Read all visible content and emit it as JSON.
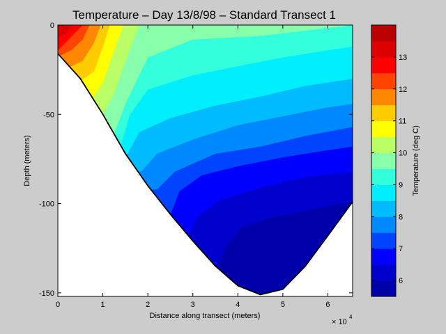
{
  "chart_data": {
    "type": "contour",
    "title": "Temperature – Day 13/8/98 – Standard Transect 1",
    "xlabel": "Distance along transect (meters)",
    "ylabel": "Depth (meters)",
    "x_multiplier_label": "× 10",
    "x_multiplier_exponent": "4",
    "xlim": [
      0,
      65500
    ],
    "ylim": [
      -152,
      0
    ],
    "x_ticks": [
      "0",
      "1",
      "2",
      "3",
      "4",
      "5",
      "6"
    ],
    "y_ticks": [
      "0",
      "-50",
      "-100",
      "-150"
    ],
    "colorbar": {
      "label": "Temperature (deg C)",
      "range": [
        5.5,
        14
      ],
      "ticks": [
        "6",
        "7",
        "8",
        "9",
        "10",
        "11",
        "12",
        "13"
      ],
      "levels": [
        {
          "min": 5.5,
          "max": 6.0,
          "color": "#0000AA"
        },
        {
          "min": 6.0,
          "max": 6.5,
          "color": "#0000CC"
        },
        {
          "min": 6.5,
          "max": 7.0,
          "color": "#0000FF"
        },
        {
          "min": 7.0,
          "max": 7.5,
          "color": "#0044FF"
        },
        {
          "min": 7.5,
          "max": 8.0,
          "color": "#0088FF"
        },
        {
          "min": 8.0,
          "max": 8.5,
          "color": "#00BBFF"
        },
        {
          "min": 8.5,
          "max": 9.0,
          "color": "#00EEFF"
        },
        {
          "min": 9.0,
          "max": 9.5,
          "color": "#33FFDD"
        },
        {
          "min": 9.5,
          "max": 10.0,
          "color": "#88FFAA"
        },
        {
          "min": 10.0,
          "max": 10.5,
          "color": "#BBFF66"
        },
        {
          "min": 10.5,
          "max": 11.0,
          "color": "#FFFF00"
        },
        {
          "min": 11.0,
          "max": 11.5,
          "color": "#FFCC00"
        },
        {
          "min": 11.5,
          "max": 12.0,
          "color": "#FF8800"
        },
        {
          "min": 12.0,
          "max": 12.5,
          "color": "#FF4400"
        },
        {
          "min": 12.5,
          "max": 13.0,
          "color": "#FF0000"
        },
        {
          "min": 13.0,
          "max": 13.5,
          "color": "#DD0000"
        },
        {
          "min": 13.5,
          "max": 14.0,
          "color": "#BB0000"
        }
      ]
    },
    "bottom_profile": [
      [
        0,
        -16
      ],
      [
        5000,
        -30
      ],
      [
        10000,
        -50
      ],
      [
        15000,
        -72
      ],
      [
        20000,
        -90
      ],
      [
        25000,
        -106
      ],
      [
        30000,
        -121
      ],
      [
        35000,
        -135
      ],
      [
        40000,
        -146
      ],
      [
        45000,
        -151
      ],
      [
        50000,
        -148
      ],
      [
        55000,
        -135
      ],
      [
        60000,
        -118
      ],
      [
        65500,
        -99
      ]
    ],
    "isotherms": [
      {
        "t": 13.5,
        "pts": [
          [
            0,
            -1
          ],
          [
            1800,
            0
          ]
        ]
      },
      {
        "t": 13.0,
        "pts": [
          [
            0,
            -7
          ],
          [
            1600,
            -5
          ],
          [
            3300,
            0
          ]
        ]
      },
      {
        "t": 12.5,
        "pts": [
          [
            0,
            -14
          ],
          [
            2000,
            -9
          ],
          [
            3500,
            -5
          ],
          [
            5500,
            0
          ]
        ]
      },
      {
        "t": 12.0,
        "pts": [
          [
            500,
            -17
          ],
          [
            3000,
            -14
          ],
          [
            5500,
            -8
          ],
          [
            7000,
            0
          ]
        ]
      },
      {
        "t": 11.5,
        "pts": [
          [
            3000,
            -23
          ],
          [
            5500,
            -20
          ],
          [
            8000,
            -10
          ],
          [
            9500,
            0
          ]
        ]
      },
      {
        "t": 11.0,
        "pts": [
          [
            5200,
            -31
          ],
          [
            8000,
            -26
          ],
          [
            10000,
            -12
          ],
          [
            11500,
            0
          ]
        ]
      },
      {
        "t": 10.5,
        "pts": [
          [
            8000,
            -40
          ],
          [
            10000,
            -32
          ],
          [
            12500,
            -14
          ],
          [
            14500,
            0
          ]
        ]
      },
      {
        "t": 10.0,
        "pts": [
          [
            10000,
            -50
          ],
          [
            12500,
            -38
          ],
          [
            15000,
            -20
          ],
          [
            18000,
            0
          ]
        ]
      },
      {
        "t": 9.5,
        "pts": [
          [
            12500,
            -61
          ],
          [
            15000,
            -44
          ],
          [
            20000,
            -18
          ],
          [
            30000,
            -8
          ],
          [
            45000,
            -6
          ],
          [
            55000,
            -3
          ],
          [
            65500,
            0
          ]
        ]
      },
      {
        "t": 9.0,
        "pts": [
          [
            14000,
            -67
          ],
          [
            16000,
            -50
          ],
          [
            20000,
            -36
          ],
          [
            30000,
            -28
          ],
          [
            40000,
            -23
          ],
          [
            50000,
            -18
          ],
          [
            60000,
            -14
          ],
          [
            65500,
            -12
          ]
        ]
      },
      {
        "t": 8.5,
        "pts": [
          [
            15500,
            -72
          ],
          [
            18000,
            -60
          ],
          [
            25000,
            -52
          ],
          [
            35000,
            -45
          ],
          [
            45000,
            -40
          ],
          [
            55000,
            -34
          ],
          [
            65500,
            -30
          ]
        ]
      },
      {
        "t": 8.0,
        "pts": [
          [
            18500,
            -82
          ],
          [
            22000,
            -72
          ],
          [
            30000,
            -64
          ],
          [
            40000,
            -56
          ],
          [
            50000,
            -51
          ],
          [
            60000,
            -46
          ],
          [
            65500,
            -44
          ]
        ]
      },
      {
        "t": 7.5,
        "pts": [
          [
            22000,
            -92
          ],
          [
            26000,
            -82
          ],
          [
            35000,
            -72
          ],
          [
            45000,
            -68
          ],
          [
            55000,
            -62
          ],
          [
            65500,
            -57
          ]
        ]
      },
      {
        "t": 7.0,
        "pts": [
          [
            25000,
            -106
          ],
          [
            27000,
            -93
          ],
          [
            32000,
            -84
          ],
          [
            40000,
            -79
          ],
          [
            50000,
            -74
          ],
          [
            60000,
            -70
          ],
          [
            65500,
            -68
          ]
        ]
      },
      {
        "t": 6.5,
        "pts": [
          [
            29000,
            -118
          ],
          [
            31000,
            -107
          ],
          [
            36000,
            -98
          ],
          [
            45000,
            -91
          ],
          [
            55000,
            -85
          ],
          [
            65500,
            -82
          ]
        ]
      },
      {
        "t": 6.0,
        "pts": [
          [
            35500,
            -137
          ],
          [
            37000,
            -125
          ],
          [
            41000,
            -113
          ],
          [
            47000,
            -108
          ],
          [
            55000,
            -104
          ],
          [
            62000,
            -100
          ],
          [
            65500,
            -99
          ]
        ]
      }
    ]
  }
}
